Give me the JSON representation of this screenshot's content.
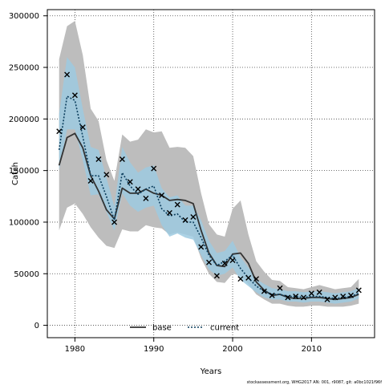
{
  "chart_data": {
    "type": "line",
    "title": "",
    "xlabel": "Years",
    "ylabel": "Catch",
    "xlim": [
      1976.5,
      2018
    ],
    "ylim": [
      -12000,
      306000
    ],
    "x_ticks": [
      1980,
      1990,
      2000,
      2010
    ],
    "y_ticks": [
      0,
      50000,
      100000,
      150000,
      200000,
      250000,
      300000
    ],
    "grid": true,
    "legend_position": "bottom-center",
    "colors": {
      "base_line": "#333333",
      "base_band": "#bdbdbd",
      "current_line": "#0b3d5c",
      "current_band": "#9ecae1",
      "observed": "#000000"
    },
    "years": [
      1978,
      1979,
      1980,
      1981,
      1982,
      1983,
      1984,
      1985,
      1986,
      1987,
      1988,
      1989,
      1990,
      1991,
      1992,
      1993,
      1994,
      1995,
      1996,
      1997,
      1998,
      1999,
      2000,
      2001,
      2002,
      2003,
      2004,
      2005,
      2006,
      2007,
      2008,
      2009,
      2010,
      2011,
      2012,
      2013,
      2014,
      2015,
      2016
    ],
    "series": [
      {
        "name": "base",
        "style": "solid",
        "values": [
          155000,
          182000,
          186000,
          172000,
          145000,
          130000,
          112000,
          103000,
          133000,
          128000,
          128000,
          132000,
          128000,
          126000,
          121000,
          122000,
          121000,
          118000,
          92000,
          70000,
          58000,
          57000,
          69000,
          70000,
          60000,
          42000,
          34000,
          29000,
          30000,
          27000,
          26000,
          26000,
          27000,
          27000,
          26000,
          25000,
          26000,
          27000,
          30000
        ],
        "lower": [
          92000,
          114000,
          118000,
          108000,
          95000,
          85000,
          77000,
          75000,
          93000,
          91000,
          91000,
          97000,
          95000,
          94000,
          88000,
          90000,
          88000,
          86000,
          65000,
          50000,
          42000,
          41000,
          50000,
          48000,
          40000,
          30000,
          25000,
          21000,
          21000,
          19000,
          18000,
          18000,
          19000,
          19000,
          18000,
          18000,
          18000,
          19000,
          21000
        ],
        "upper": [
          258000,
          290000,
          295000,
          262000,
          210000,
          198000,
          160000,
          140000,
          185000,
          178000,
          180000,
          190000,
          187000,
          188000,
          172000,
          173000,
          172000,
          164000,
          128000,
          98000,
          88000,
          86000,
          113000,
          121000,
          88000,
          62000,
          52000,
          44000,
          43000,
          37000,
          36000,
          35000,
          37000,
          39000,
          37000,
          35000,
          36000,
          37000,
          45000
        ]
      },
      {
        "name": "current",
        "style": "dotted",
        "values": [
          170000,
          222000,
          218000,
          183000,
          145000,
          145000,
          125000,
          102000,
          148000,
          135000,
          127000,
          132000,
          135000,
          113000,
          106000,
          108000,
          100000,
          100000,
          85000,
          68000,
          58000,
          62000,
          68000,
          55000,
          46000,
          38000,
          33000,
          30000,
          30000,
          28000,
          28000,
          27000,
          28000,
          28000,
          27000,
          26000,
          27000,
          28000,
          31000
        ],
        "lower": [
          150000,
          190000,
          190000,
          160000,
          126000,
          127000,
          110000,
          92000,
          128000,
          116000,
          110000,
          114000,
          116000,
          97000,
          86000,
          89000,
          85000,
          83000,
          68000,
          54000,
          48000,
          50000,
          56000,
          44000,
          38000,
          32000,
          27000,
          25000,
          25000,
          23000,
          23000,
          22000,
          23000,
          23000,
          22000,
          21000,
          22000,
          23000,
          26000
        ],
        "upper": [
          205000,
          260000,
          250000,
          210000,
          173000,
          170000,
          143000,
          115000,
          173000,
          158000,
          148000,
          153000,
          155000,
          133000,
          124000,
          126000,
          116000,
          116000,
          102000,
          82000,
          70000,
          72000,
          82000,
          66000,
          56000,
          45000,
          40000,
          36000,
          35000,
          33000,
          33000,
          32000,
          33000,
          33000,
          32000,
          31000,
          32000,
          33000,
          36000
        ]
      }
    ],
    "observed": [
      188000,
      243000,
      223000,
      192000,
      140000,
      161000,
      146000,
      100000,
      161000,
      139000,
      132000,
      123000,
      152000,
      126000,
      109000,
      117000,
      102000,
      105000,
      76000,
      61000,
      48000,
      60000,
      63000,
      45000,
      46000,
      45000,
      33000,
      29000,
      36000,
      27000,
      28000,
      27000,
      31000,
      32000,
      25000,
      27000,
      28000,
      29000,
      34000
    ],
    "legend": [
      {
        "label": "base",
        "style": "solid"
      },
      {
        "label": "current",
        "style": "dotted"
      }
    ],
    "footnote": "stockassessment.org, WHG2017 AN: 001, r9087, git: a0bc1021f96f"
  }
}
